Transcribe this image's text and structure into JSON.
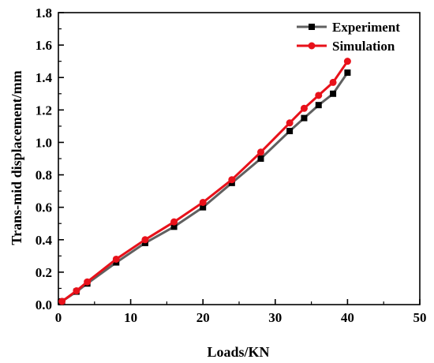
{
  "chart_data": {
    "type": "line",
    "xlabel": "Loads/KN",
    "ylabel": "Trans-mid displacement/mm",
    "xlim": [
      0,
      50
    ],
    "ylim": [
      0,
      1.8
    ],
    "xticks": [
      0,
      10,
      20,
      30,
      40,
      50
    ],
    "yticks": [
      0.0,
      0.2,
      0.4,
      0.6,
      0.8,
      1.0,
      1.2,
      1.4,
      1.6,
      1.8
    ],
    "xtick_labels": [
      "0",
      "10",
      "20",
      "30",
      "40",
      "50"
    ],
    "ytick_labels": [
      "0.0",
      "0.2",
      "0.4",
      "0.6",
      "0.8",
      "1.0",
      "1.2",
      "1.4",
      "1.6",
      "1.8"
    ],
    "grid": false,
    "legend_position": "top-right",
    "series": [
      {
        "name": "Experiment",
        "color": "#606060",
        "marker_color": "#000000",
        "marker": "square",
        "x": [
          0.5,
          2.5,
          4,
          8,
          12,
          16,
          20,
          24,
          28,
          32,
          34,
          36,
          38,
          40
        ],
        "y": [
          0.02,
          0.08,
          0.13,
          0.26,
          0.38,
          0.48,
          0.6,
          0.75,
          0.9,
          1.07,
          1.15,
          1.23,
          1.3,
          1.43
        ]
      },
      {
        "name": "Simulation",
        "color": "#e8111a",
        "marker_color": "#e8111a",
        "marker": "circle",
        "x": [
          0.5,
          2.5,
          4,
          8,
          12,
          16,
          20,
          24,
          28,
          32,
          34,
          36,
          38,
          40
        ],
        "y": [
          0.02,
          0.085,
          0.14,
          0.28,
          0.4,
          0.51,
          0.63,
          0.77,
          0.94,
          1.12,
          1.21,
          1.29,
          1.37,
          1.5
        ]
      }
    ]
  }
}
